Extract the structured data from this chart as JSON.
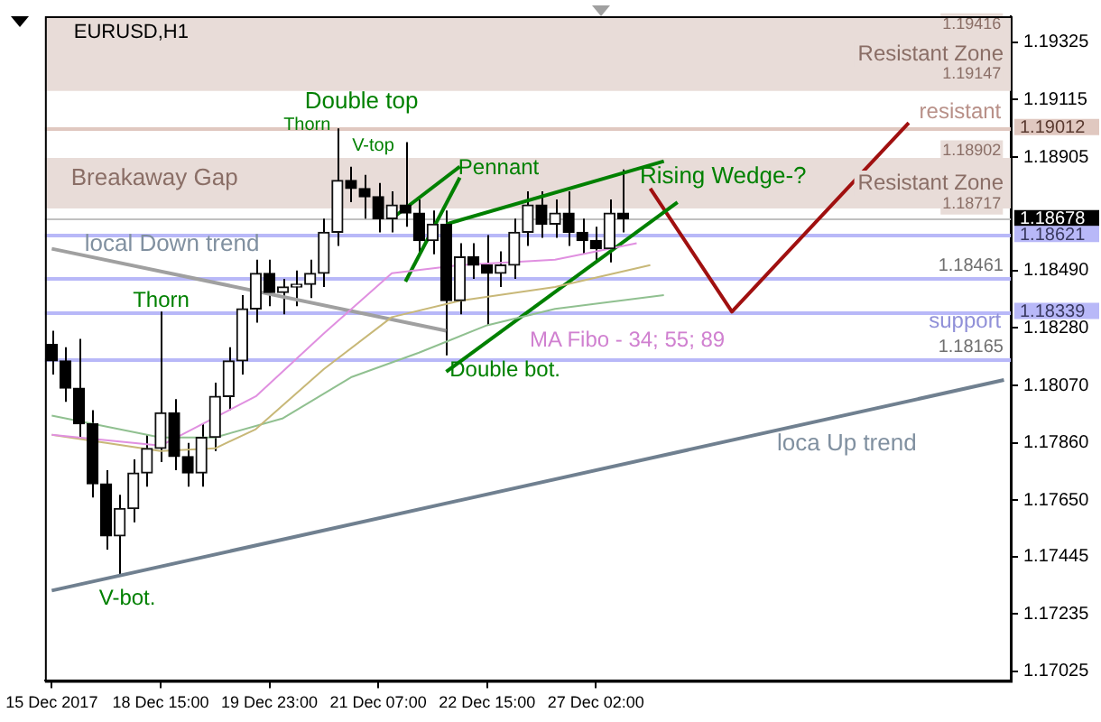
{
  "chart_data": {
    "type": "candlestick",
    "title": "EURUSD,H1",
    "categories": [
      "15 Dec 2017",
      null,
      null,
      null,
      null,
      null,
      null,
      null,
      "18 Dec 15:00",
      null,
      null,
      null,
      null,
      null,
      null,
      null,
      "19 Dec 23:00",
      null,
      null,
      null,
      null,
      null,
      null,
      null,
      "21 Dec 07:00",
      null,
      null,
      null,
      null,
      null,
      null,
      null,
      "22 Dec 15:00",
      null,
      null,
      null,
      null,
      null,
      null,
      null,
      "27 Dec 02:00",
      null,
      null,
      null,
      null,
      null,
      null,
      null,
      null,
      null,
      null,
      null,
      null,
      null,
      null,
      null,
      null,
      null,
      null,
      null,
      null,
      null,
      null,
      null,
      null,
      null,
      null,
      null,
      null,
      null,
      null
    ],
    "ohlc": [
      [
        1.1822,
        1.1827,
        1.1811,
        1.1816
      ],
      [
        1.1816,
        1.1821,
        1.1801,
        1.1806
      ],
      [
        1.1806,
        1.1824,
        1.1788,
        1.1793
      ],
      [
        1.1793,
        1.1798,
        1.1766,
        1.1771
      ],
      [
        1.1771,
        1.1776,
        1.1747,
        1.1752
      ],
      [
        1.1752,
        1.1767,
        1.1738,
        1.1762
      ],
      [
        1.1762,
        1.178,
        1.1757,
        1.1775
      ],
      [
        1.1775,
        1.1789,
        1.177,
        1.1784
      ],
      [
        1.1784,
        1.1834,
        1.1779,
        1.1797
      ],
      [
        1.1797,
        1.1802,
        1.1776,
        1.1781
      ],
      [
        1.1781,
        1.1786,
        1.177,
        1.1775
      ],
      [
        1.1775,
        1.1793,
        1.177,
        1.1788
      ],
      [
        1.1788,
        1.1808,
        1.1783,
        1.1803
      ],
      [
        1.1803,
        1.1821,
        1.1798,
        1.1816
      ],
      [
        1.1816,
        1.184,
        1.1811,
        1.1835
      ],
      [
        1.1835,
        1.1853,
        1.183,
        1.1848
      ],
      [
        1.1848,
        1.1853,
        1.1836,
        1.1841
      ],
      [
        1.1841,
        1.1846,
        1.1833,
        1.1843
      ],
      [
        1.1843,
        1.1849,
        1.1836,
        1.1844
      ],
      [
        1.1844,
        1.1853,
        1.1839,
        1.1848
      ],
      [
        1.1848,
        1.1868,
        1.1843,
        1.1863
      ],
      [
        1.1863,
        1.1901,
        1.1858,
        1.1882
      ],
      [
        1.1882,
        1.1887,
        1.1874,
        1.1879
      ],
      [
        1.1879,
        1.1884,
        1.1868,
        1.1876
      ],
      [
        1.1876,
        1.1881,
        1.1863,
        1.1868
      ],
      [
        1.1868,
        1.1878,
        1.1863,
        1.1873
      ],
      [
        1.1873,
        1.1896,
        1.1865,
        1.187
      ],
      [
        1.187,
        1.1875,
        1.1855,
        1.186
      ],
      [
        1.186,
        1.1871,
        1.1855,
        1.1866
      ],
      [
        1.1866,
        1.1871,
        1.1818,
        1.1838
      ],
      [
        1.1838,
        1.1859,
        1.1833,
        1.1854
      ],
      [
        1.1854,
        1.1859,
        1.1846,
        1.1851
      ],
      [
        1.1851,
        1.1862,
        1.1829,
        1.1848
      ],
      [
        1.1848,
        1.1856,
        1.1843,
        1.1851
      ],
      [
        1.1851,
        1.1868,
        1.1846,
        1.1863
      ],
      [
        1.1863,
        1.1878,
        1.1858,
        1.1873
      ],
      [
        1.1873,
        1.1878,
        1.1861,
        1.1866
      ],
      [
        1.1866,
        1.1875,
        1.1861,
        1.187
      ],
      [
        1.187,
        1.1878,
        1.1858,
        1.1863
      ],
      [
        1.1863,
        1.1868,
        1.1855,
        1.186
      ],
      [
        1.186,
        1.1865,
        1.1852,
        1.1857
      ],
      [
        1.1857,
        1.1875,
        1.1852,
        1.187
      ],
      [
        1.187,
        1.1886,
        1.1863,
        1.1868
      ],
      null,
      null,
      null,
      null,
      null,
      null,
      null,
      null,
      null,
      null,
      null,
      null,
      null,
      null,
      null,
      null,
      null,
      null,
      null,
      null,
      null,
      null,
      null,
      null,
      null,
      null,
      null,
      null
    ],
    "series": [
      {
        "type": "line",
        "color": "#e090e0",
        "values": [
          1.1789,
          null,
          null,
          null,
          null,
          null,
          null,
          null,
          1.1785,
          null,
          null,
          null,
          null,
          null,
          null,
          1.1803,
          null,
          null,
          null,
          null,
          1.1826,
          null,
          null,
          null,
          null,
          1.1848,
          null,
          null,
          null,
          null,
          1.1851,
          null,
          null,
          null,
          null,
          null,
          null,
          1.1853,
          null,
          null,
          null,
          null,
          null,
          1.1859,
          null,
          null,
          null,
          null,
          null,
          null,
          null,
          null,
          null,
          null,
          null,
          null,
          null,
          null,
          null,
          null,
          null,
          null,
          null,
          null,
          null,
          null,
          null,
          null,
          null,
          null,
          null
        ]
      },
      {
        "type": "line",
        "color": "#c8b878",
        "values": [
          1.1789,
          null,
          null,
          null,
          null,
          null,
          null,
          null,
          1.1783,
          null,
          null,
          null,
          1.1784,
          null,
          null,
          1.1791,
          null,
          null,
          null,
          null,
          1.1813,
          null,
          null,
          null,
          null,
          1.1832,
          null,
          null,
          null,
          null,
          1.1838,
          null,
          null,
          null,
          null,
          null,
          null,
          1.1843,
          null,
          null,
          null,
          null,
          null,
          null,
          1.1851,
          null,
          null,
          null,
          null,
          null,
          null,
          null,
          null,
          null,
          null,
          null,
          null,
          null,
          null,
          null,
          null,
          null,
          null,
          null,
          null,
          null,
          null,
          null,
          null,
          null,
          null
        ]
      },
      {
        "type": "line",
        "color": "#90c090",
        "values": [
          1.1796,
          null,
          null,
          null,
          null,
          null,
          null,
          null,
          1.1788,
          null,
          null,
          null,
          1.1788,
          null,
          null,
          null,
          null,
          1.1795,
          null,
          null,
          null,
          null,
          1.181,
          null,
          null,
          null,
          null,
          1.1819,
          null,
          null,
          null,
          null,
          1.1829,
          null,
          null,
          null,
          null,
          1.1835,
          null,
          null,
          null,
          null,
          null,
          null,
          null,
          1.184,
          null,
          null,
          null,
          null,
          null,
          null,
          null,
          null,
          null,
          null,
          null,
          null,
          null,
          null,
          null,
          null,
          null,
          null,
          null,
          null,
          null,
          null,
          null,
          null,
          null
        ]
      },
      {
        "type": "line",
        "color": "#a0a0a0",
        "values": [
          1.1857,
          null,
          null,
          null,
          null,
          null,
          null,
          null,
          null,
          null,
          null,
          null,
          null,
          null,
          null,
          null,
          null,
          null,
          null,
          null,
          null,
          null,
          null,
          null,
          null,
          null,
          null,
          null,
          null,
          1.1827,
          null,
          null,
          null,
          null,
          null,
          null,
          null,
          null,
          null,
          null,
          null,
          null,
          null,
          null,
          null,
          null,
          null,
          null,
          null,
          null,
          null,
          null,
          null,
          null,
          null,
          null,
          null,
          null,
          null,
          null,
          null,
          null,
          null,
          null,
          null,
          null,
          null,
          null,
          null,
          null,
          null
        ]
      },
      {
        "type": "line",
        "color": "#708090",
        "values": [
          1.1732,
          null,
          null,
          null,
          null,
          null,
          null,
          null,
          null,
          null,
          null,
          null,
          null,
          null,
          null,
          null,
          null,
          null,
          null,
          null,
          null,
          null,
          null,
          null,
          null,
          null,
          null,
          null,
          null,
          null,
          null,
          null,
          null,
          null,
          null,
          null,
          null,
          null,
          null,
          null,
          null,
          null,
          null,
          null,
          null,
          null,
          null,
          null,
          null,
          null,
          null,
          null,
          null,
          null,
          null,
          null,
          null,
          null,
          null,
          null,
          null,
          null,
          null,
          null,
          null,
          null,
          null,
          null,
          null,
          null,
          1.1809
        ]
      },
      {
        "type": "line",
        "color": "#008000",
        "values": [
          null,
          null,
          null,
          null,
          null,
          null,
          null,
          null,
          null,
          null,
          null,
          null,
          null,
          null,
          null,
          null,
          null,
          null,
          null,
          null,
          null,
          null,
          null,
          null,
          null,
          null,
          null,
          null,
          null,
          1.1866,
          null,
          null,
          null,
          null,
          null,
          null,
          null,
          null,
          null,
          null,
          null,
          null,
          null,
          null,
          null,
          1.1889,
          null,
          null,
          null,
          null,
          null,
          null,
          null,
          null,
          null,
          null,
          null,
          null,
          null,
          null,
          null,
          null,
          null,
          null,
          null,
          null,
          null,
          null,
          null,
          null,
          null
        ]
      },
      {
        "type": "line",
        "color": "#008000",
        "values": [
          null,
          null,
          null,
          null,
          null,
          null,
          null,
          null,
          null,
          null,
          null,
          null,
          null,
          null,
          null,
          null,
          null,
          null,
          null,
          null,
          null,
          null,
          null,
          null,
          null,
          null,
          null,
          null,
          null,
          1.1812,
          null,
          null,
          null,
          null,
          null,
          null,
          null,
          null,
          null,
          null,
          null,
          null,
          null,
          null,
          null,
          null,
          1.1874,
          null,
          null,
          null,
          null,
          null,
          null,
          null,
          null,
          null,
          null,
          null,
          null,
          null,
          null,
          null,
          null,
          null,
          null,
          null,
          null,
          null,
          null,
          null,
          null
        ]
      },
      {
        "type": "line",
        "color": "#008000",
        "values": [
          null,
          null,
          null,
          null,
          null,
          null,
          null,
          null,
          null,
          null,
          null,
          null,
          null,
          null,
          null,
          null,
          null,
          null,
          null,
          null,
          null,
          null,
          null,
          null,
          null,
          1.1868,
          null,
          null,
          null,
          null,
          1.1887,
          null,
          null,
          null,
          null,
          null,
          null,
          null,
          null,
          null,
          null,
          null,
          null,
          null,
          null,
          null,
          null,
          null,
          null,
          null,
          null,
          null,
          null,
          null,
          null,
          null,
          null,
          null,
          null,
          null,
          null,
          null,
          null,
          null,
          null,
          null,
          null,
          null,
          null,
          null,
          null
        ]
      },
      {
        "type": "line",
        "color": "#008000",
        "values": [
          null,
          null,
          null,
          null,
          null,
          null,
          null,
          null,
          null,
          null,
          null,
          null,
          null,
          null,
          null,
          null,
          null,
          null,
          null,
          null,
          null,
          null,
          null,
          null,
          null,
          null,
          1.1845,
          null,
          null,
          null,
          1.1883,
          null,
          null,
          null,
          null,
          null,
          null,
          null,
          null,
          null,
          null,
          null,
          null,
          null,
          null,
          null,
          null,
          null,
          null,
          null,
          null,
          null,
          null,
          null,
          null,
          null,
          null,
          null,
          null,
          null,
          null,
          null,
          null,
          null,
          null,
          null,
          null,
          null,
          null,
          null,
          null
        ]
      },
      {
        "type": "line",
        "color": "#a01010",
        "values": [
          null,
          null,
          null,
          null,
          null,
          null,
          null,
          null,
          null,
          null,
          null,
          null,
          null,
          null,
          null,
          null,
          null,
          null,
          null,
          null,
          null,
          null,
          null,
          null,
          null,
          null,
          null,
          null,
          null,
          null,
          null,
          null,
          null,
          null,
          null,
          null,
          null,
          null,
          null,
          null,
          null,
          null,
          null,
          null,
          1.1879,
          null,
          null,
          null,
          null,
          null,
          1.1834,
          null,
          null,
          null,
          null,
          null,
          null,
          null,
          null,
          null,
          null,
          null,
          null,
          1.1903,
          null,
          null,
          null,
          null,
          null,
          null,
          null
        ]
      }
    ],
    "ylim": [
      1.1699,
      1.1942
    ],
    "yticks": [
      1.19325,
      1.19115,
      1.18905,
      {
        "value": 1.1849,
        "label": "1.18490"
      },
      {
        "value": 1.1828,
        "label": "1.18280"
      },
      {
        "value": 1.1807,
        "label": "1.18070"
      },
      {
        "value": 1.1786,
        "label": "1.17860"
      },
      {
        "value": 1.1765,
        "label": "1.17650"
      },
      1.17445,
      1.17235,
      1.17025
    ],
    "bands": [
      {
        "axis": "y",
        "from": 1.19147,
        "to": 1.19416,
        "label": "Resistant Zone",
        "color": "#e8dcd8"
      },
      {
        "axis": "y",
        "from": 1.18717,
        "to": 1.18902,
        "label": "Resistant Zone",
        "color": "#e8dcd8"
      }
    ],
    "ref_lines": [
      {
        "axis": "y",
        "value": 1.19012,
        "label": "1.19012",
        "color": "#e0c8c0"
      },
      {
        "axis": "y",
        "value": 1.18678,
        "label": "1.18678",
        "color": "#c0c0c0"
      },
      {
        "axis": "y",
        "value": 1.18621,
        "label": "1.18621",
        "color": "#b8b8f8"
      },
      {
        "axis": "y",
        "value": 1.18461,
        "label": "1.18461",
        "color": "#b8b8f8"
      },
      {
        "axis": "y",
        "value": 1.18339,
        "label": "1.18339",
        "color": "#b8b8f8"
      },
      {
        "axis": "y",
        "value": 1.18165,
        "label": "1.18165",
        "color": "#b8b8f8"
      }
    ],
    "annotations": [
      "Double top",
      "Thorn",
      "V-top",
      "Pennant",
      "Rising Wedge-?",
      "Breakaway Gap",
      "resistant",
      "local Down trend",
      "Thorn",
      "MA Fibo - 34; 55; 89",
      "Double bot.",
      "support",
      "loca Up trend",
      "V-bot.",
      "1.19416",
      "1.19147",
      "1.18902",
      "1.18717"
    ],
    "grid": false,
    "legend": false,
    "marker": "none"
  }
}
